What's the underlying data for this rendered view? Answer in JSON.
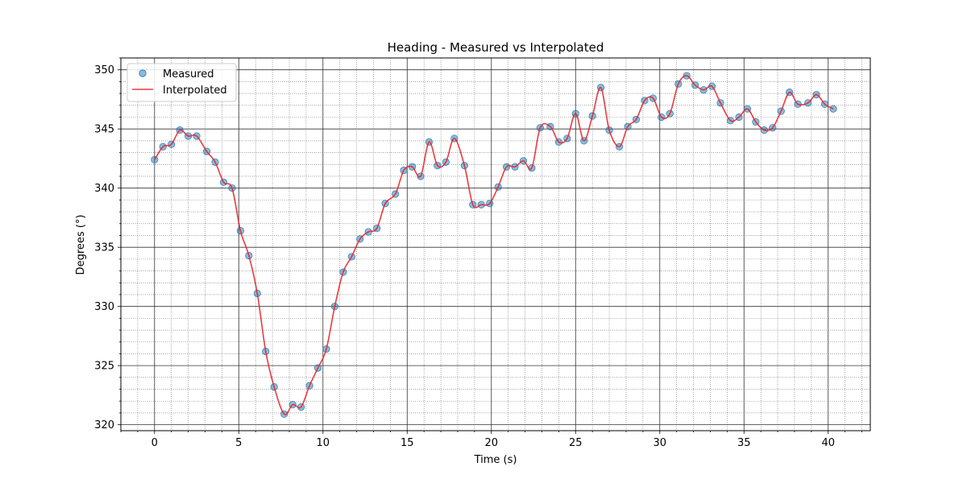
{
  "chart_data": {
    "type": "line",
    "title": "Heading - Measured vs Interpolated",
    "xlabel": "Time (s)",
    "ylabel": "Degrees (°)",
    "xlim": [
      -2.0,
      42.5
    ],
    "ylim": [
      319.5,
      351.0
    ],
    "xticks": [
      0,
      5,
      10,
      15,
      20,
      25,
      30,
      35,
      40
    ],
    "yticks": [
      320,
      325,
      330,
      335,
      340,
      345,
      350
    ],
    "grid": true,
    "minor_grid": true,
    "legend": "top-left",
    "series": [
      {
        "name": "Measured",
        "kind": "scatter",
        "color": "#1f77b4",
        "x": [
          0.0,
          0.5,
          1.0,
          1.5,
          2.0,
          2.5,
          3.1,
          3.6,
          4.1,
          4.6,
          5.1,
          5.6,
          6.1,
          6.6,
          7.1,
          7.7,
          8.2,
          8.7,
          9.2,
          9.7,
          10.2,
          10.7,
          11.2,
          11.7,
          12.2,
          12.7,
          13.2,
          13.7,
          14.3,
          14.8,
          15.3,
          15.8,
          16.3,
          16.8,
          17.3,
          17.8,
          18.4,
          18.9,
          19.4,
          19.9,
          20.4,
          20.9,
          21.4,
          21.9,
          22.4,
          22.9,
          23.5,
          24.0,
          24.5,
          25.0,
          25.5,
          26.0,
          26.5,
          27.0,
          27.6,
          28.1,
          28.6,
          29.1,
          29.6,
          30.1,
          30.6,
          31.1,
          31.6,
          32.1,
          32.6,
          33.1,
          33.6,
          34.2,
          34.7,
          35.2,
          35.7,
          36.2,
          36.7,
          37.2,
          37.7,
          38.2,
          38.8,
          39.3,
          39.8,
          40.3
        ],
        "y": [
          342.4,
          343.5,
          343.7,
          344.9,
          344.4,
          344.4,
          343.1,
          342.2,
          340.5,
          340.0,
          336.4,
          334.3,
          331.1,
          326.2,
          323.2,
          320.9,
          321.7,
          321.5,
          323.3,
          324.8,
          326.4,
          330.0,
          332.9,
          334.2,
          335.7,
          336.3,
          336.6,
          338.7,
          339.5,
          341.5,
          341.8,
          341.0,
          343.9,
          341.9,
          342.2,
          344.2,
          341.9,
          338.6,
          338.6,
          338.7,
          340.1,
          341.8,
          341.8,
          342.3,
          341.7,
          345.1,
          345.2,
          343.9,
          344.2,
          346.3,
          344.0,
          346.1,
          348.5,
          344.9,
          343.5,
          345.2,
          345.8,
          347.4,
          347.6,
          346.0,
          346.3,
          348.8,
          349.5,
          348.7,
          348.3,
          348.6,
          347.2,
          345.7,
          346.0,
          346.7,
          345.6,
          344.9,
          345.1,
          346.5,
          348.1,
          347.1,
          347.2,
          347.9,
          347.1,
          346.7
        ]
      },
      {
        "name": "Interpolated",
        "kind": "line",
        "color": "#e8262a"
      }
    ]
  }
}
